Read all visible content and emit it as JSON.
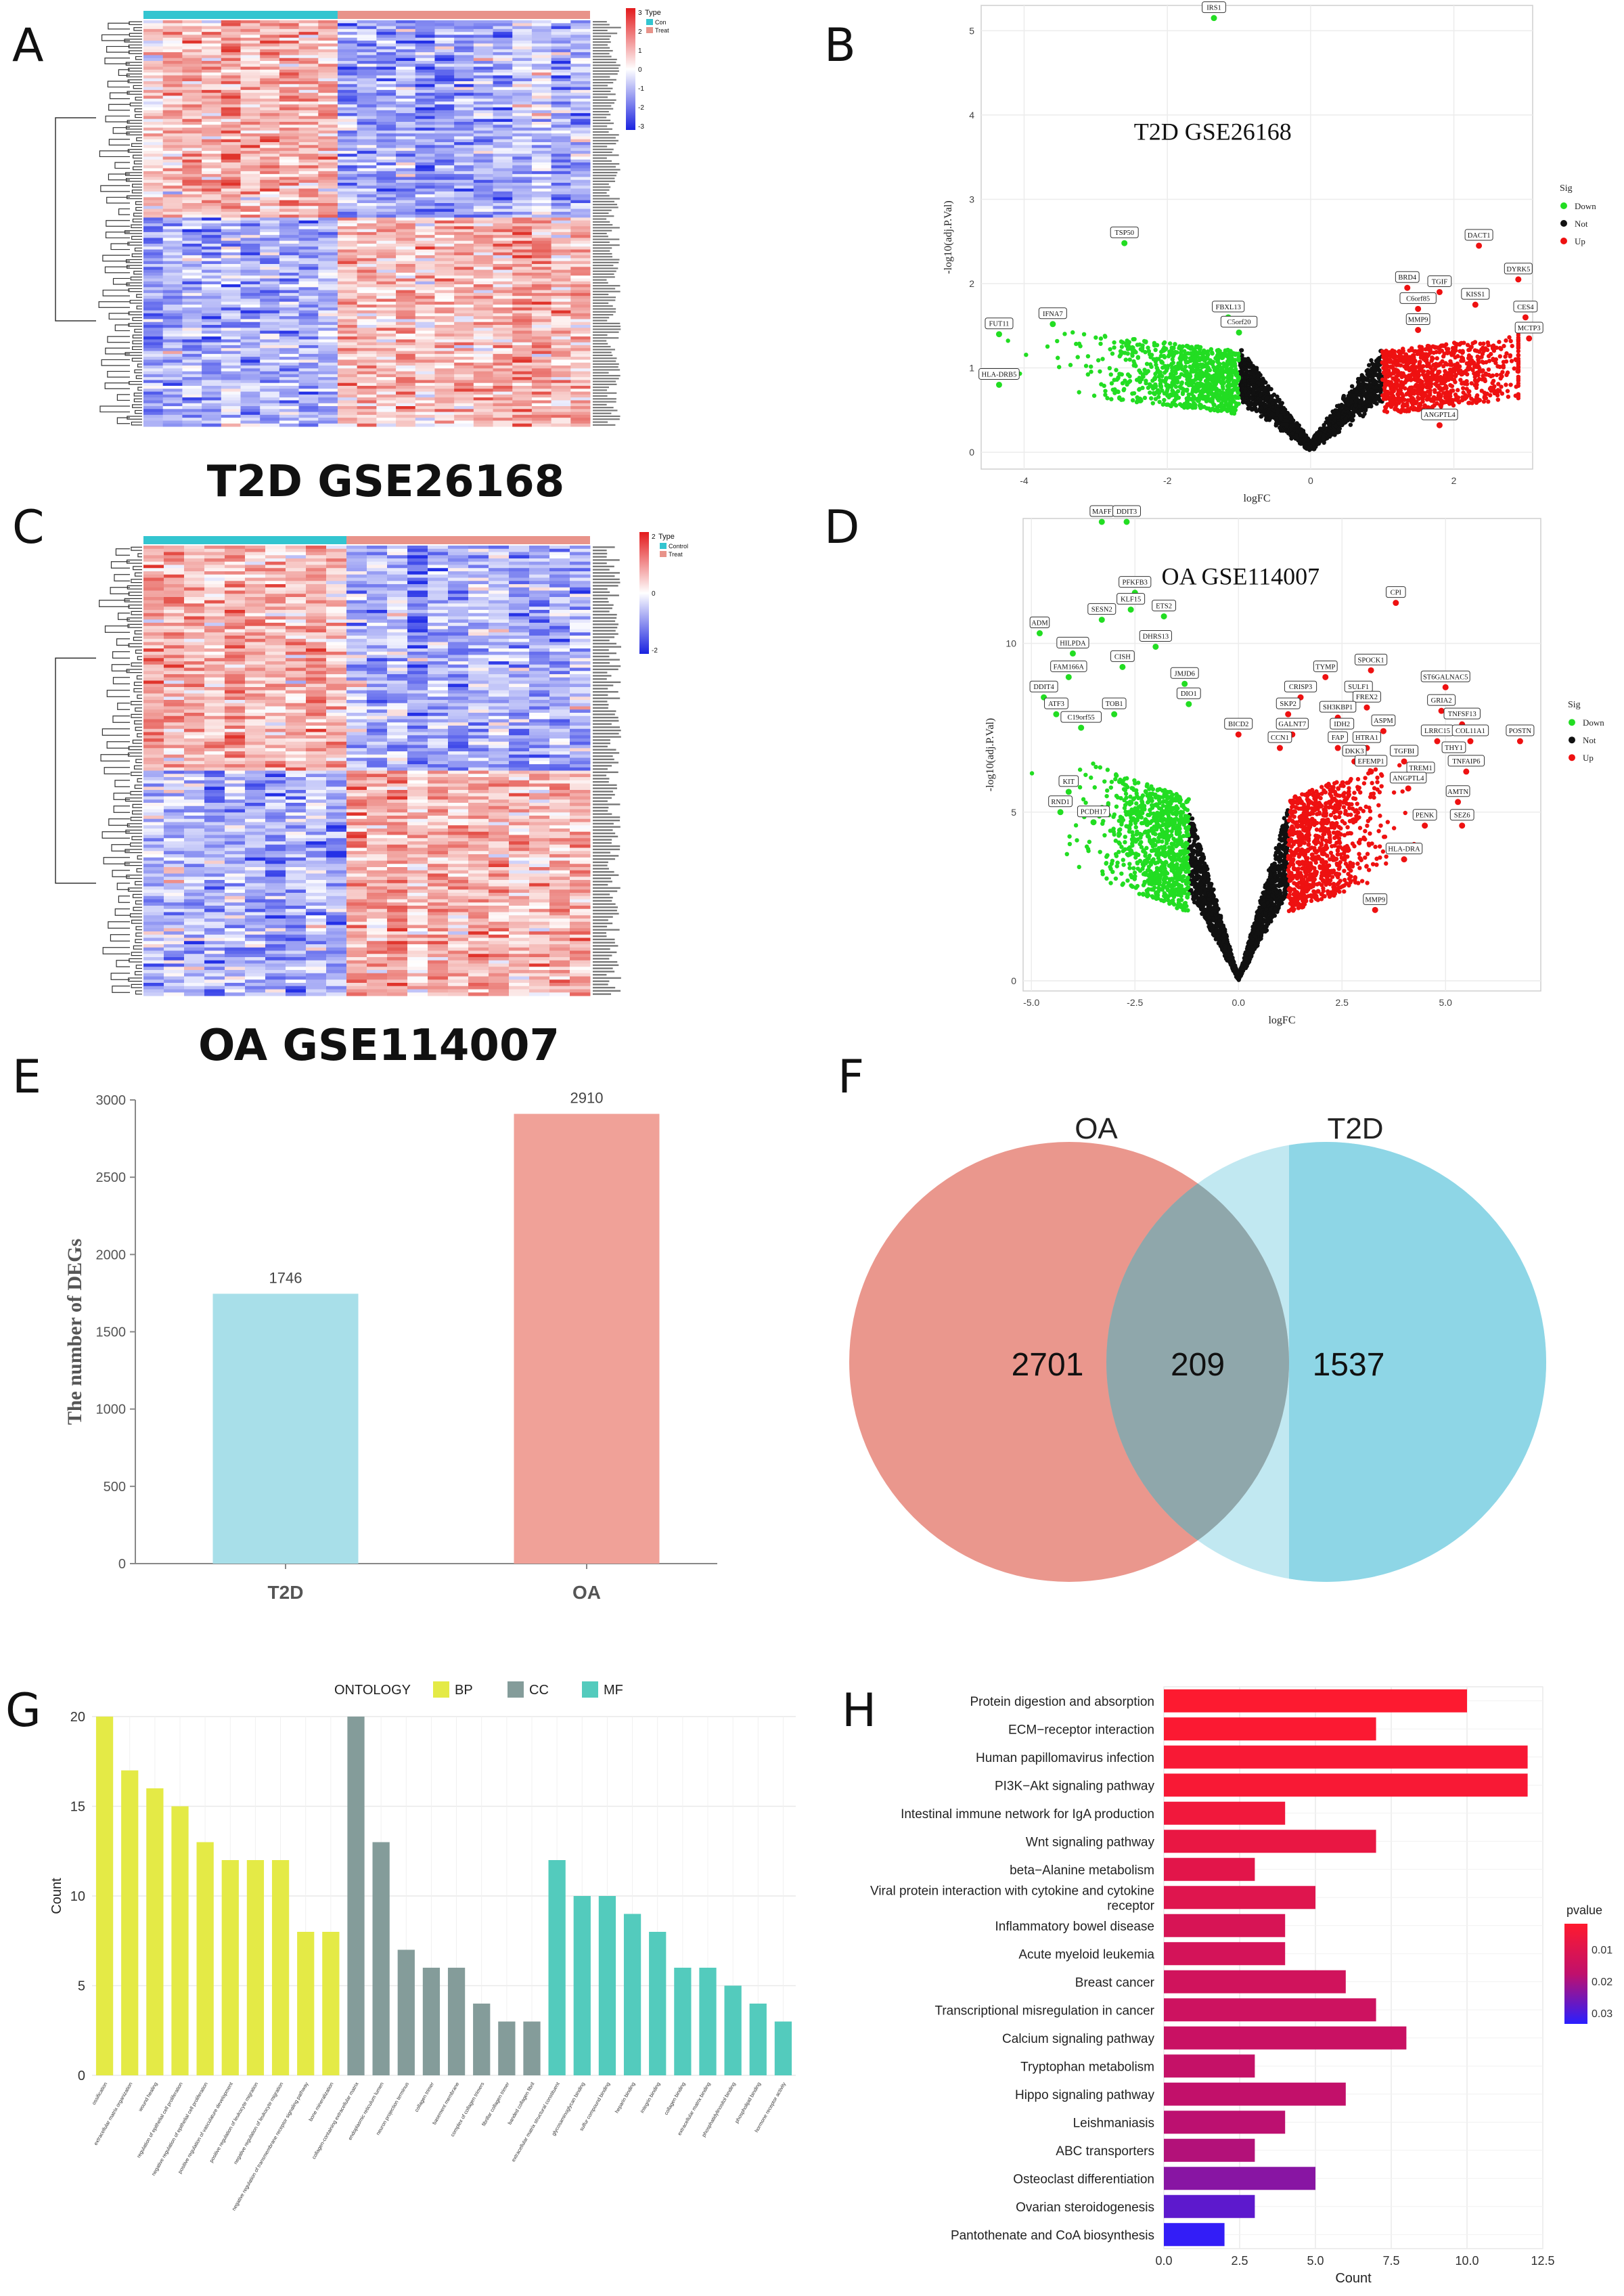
{
  "panels": {
    "A": "A",
    "B": "B",
    "C": "C",
    "D": "D",
    "E": "E",
    "F": "F",
    "G": "G",
    "H": "H"
  },
  "titles": {
    "t2d_heatmap": "T2D GSE26168",
    "oa_heatmap": "OA GSE114007",
    "t2d_volcano": "T2D GSE26168",
    "oa_volcano": "OA GSE114007"
  },
  "heatmapA": {
    "legend_title": "Type",
    "groups": [
      "Con",
      "Treat"
    ],
    "group_colors": [
      "#33c5d0",
      "#e8938a"
    ],
    "scale_ticks": [
      "3",
      "2",
      "1",
      "0",
      "-1",
      "-2",
      "-3"
    ],
    "low_color": "#1a22e0",
    "mid_color": "#ffffff",
    "high_color": "#e31a1c"
  },
  "heatmapC": {
    "legend_title": "Type",
    "groups": [
      "Control",
      "Treat"
    ],
    "group_colors": [
      "#33c5d0",
      "#e8938a"
    ],
    "scale_ticks": [
      "2",
      "0",
      "-2"
    ]
  },
  "chart_data": [
    {
      "id": "B",
      "type": "scatter",
      "title": "T2D GSE26168",
      "xlabel": "logFC",
      "ylabel": "-log10(adj.P.Val)",
      "xlim": [
        -4.6,
        3.1
      ],
      "ylim": [
        -0.2,
        5.3
      ],
      "xticks": [
        -4,
        -2,
        0,
        2
      ],
      "yticks": [
        0,
        1,
        2,
        3,
        4,
        5
      ],
      "legend": {
        "title": "Sig",
        "entries": [
          "Down",
          "Not",
          "Up"
        ],
        "colors": [
          "#22dd22",
          "#111111",
          "#ee1111"
        ]
      },
      "labels": [
        {
          "text": "IRS1",
          "x": -1.35,
          "y": 5.15,
          "sig": "Down"
        },
        {
          "text": "TSP50",
          "x": -2.6,
          "y": 2.48,
          "sig": "Down"
        },
        {
          "text": "IFNA7",
          "x": -3.6,
          "y": 1.52,
          "sig": "Down"
        },
        {
          "text": "FUT11",
          "x": -4.35,
          "y": 1.4,
          "sig": "Down"
        },
        {
          "text": "HLA-DRB5",
          "x": -4.35,
          "y": 0.8,
          "sig": "Down"
        },
        {
          "text": "FBXL13",
          "x": -1.15,
          "y": 1.6,
          "sig": "Down"
        },
        {
          "text": "C5orf20",
          "x": -1.0,
          "y": 1.42,
          "sig": "Down"
        },
        {
          "text": "BRD4",
          "x": 1.35,
          "y": 1.95,
          "sig": "Up"
        },
        {
          "text": "TGIF",
          "x": 1.8,
          "y": 1.9,
          "sig": "Up"
        },
        {
          "text": "C6orf85",
          "x": 1.5,
          "y": 1.7,
          "sig": "Up"
        },
        {
          "text": "DACT1",
          "x": 2.35,
          "y": 2.45,
          "sig": "Up"
        },
        {
          "text": "DYRK5",
          "x": 2.9,
          "y": 2.05,
          "sig": "Up"
        },
        {
          "text": "KISS1",
          "x": 2.3,
          "y": 1.75,
          "sig": "Up"
        },
        {
          "text": "MMP9",
          "x": 1.5,
          "y": 1.45,
          "sig": "Up"
        },
        {
          "text": "CES4",
          "x": 3.0,
          "y": 1.6,
          "sig": "Up"
        },
        {
          "text": "MCTP3",
          "x": 3.05,
          "y": 1.35,
          "sig": "Up"
        },
        {
          "text": "ANGPTL4",
          "x": 1.8,
          "y": 0.32,
          "sig": "Up"
        }
      ]
    },
    {
      "id": "D",
      "type": "scatter",
      "title": "OA GSE114007",
      "xlabel": "logFC",
      "ylabel": "-log10(adj.P.Val)",
      "xlim": [
        -5.2,
        7.3
      ],
      "ylim": [
        -0.3,
        13.7
      ],
      "xticks": [
        -5.0,
        -2.5,
        0.0,
        2.5,
        5.0
      ],
      "xticklabels": [
        "-5.0",
        "-2.5",
        "0.0",
        "2.5",
        "5.0"
      ],
      "yticks": [
        0,
        5,
        10
      ],
      "legend": {
        "title": "Sig",
        "entries": [
          "Down",
          "Not",
          "Up"
        ],
        "colors": [
          "#22dd22",
          "#111111",
          "#ee1111"
        ]
      },
      "labels": [
        {
          "text": "MAFF",
          "x": -3.3,
          "y": 13.6
        },
        {
          "text": "DDIT3",
          "x": -2.7,
          "y": 13.6
        },
        {
          "text": "PFKFB3",
          "x": -2.5,
          "y": 11.5
        },
        {
          "text": "KLF15",
          "x": -2.6,
          "y": 11.0
        },
        {
          "text": "SESN2",
          "x": -3.3,
          "y": 10.7
        },
        {
          "text": "ETS2",
          "x": -1.8,
          "y": 10.8
        },
        {
          "text": "ADM",
          "x": -4.8,
          "y": 10.3
        },
        {
          "text": "HILPDA",
          "x": -4.0,
          "y": 9.7
        },
        {
          "text": "DHRS13",
          "x": -2.0,
          "y": 9.9
        },
        {
          "text": "CISH",
          "x": -2.8,
          "y": 9.3
        },
        {
          "text": "FAM166A",
          "x": -4.1,
          "y": 9.0
        },
        {
          "text": "DDIT4",
          "x": -4.7,
          "y": 8.4
        },
        {
          "text": "JMJD6",
          "x": -1.3,
          "y": 8.8
        },
        {
          "text": "ATF3",
          "x": -4.4,
          "y": 7.9
        },
        {
          "text": "TOB1",
          "x": -3.0,
          "y": 7.9
        },
        {
          "text": "DIO1",
          "x": -1.2,
          "y": 8.2
        },
        {
          "text": "C19orf55",
          "x": -3.8,
          "y": 7.5
        },
        {
          "text": "KIT",
          "x": -4.1,
          "y": 5.6
        },
        {
          "text": "RND1",
          "x": -4.3,
          "y": 5.0
        },
        {
          "text": "PCDH17",
          "x": -3.5,
          "y": 4.7
        },
        {
          "text": "CPI",
          "x": 3.8,
          "y": 11.2
        },
        {
          "text": "SPOCK1",
          "x": 3.2,
          "y": 9.2
        },
        {
          "text": "TYMP",
          "x": 2.1,
          "y": 9.0
        },
        {
          "text": "ST6GALNAC5",
          "x": 5.0,
          "y": 8.7
        },
        {
          "text": "CRISP3",
          "x": 1.5,
          "y": 8.4
        },
        {
          "text": "SULF1",
          "x": 2.9,
          "y": 8.4
        },
        {
          "text": "FREX2",
          "x": 3.1,
          "y": 8.1
        },
        {
          "text": "GRIA2",
          "x": 4.9,
          "y": 8.0
        },
        {
          "text": "SKP2",
          "x": 1.2,
          "y": 7.9
        },
        {
          "text": "SH3KBP1",
          "x": 2.4,
          "y": 7.8
        },
        {
          "text": "TNFSF13",
          "x": 5.4,
          "y": 7.6
        },
        {
          "text": "ASPM",
          "x": 3.5,
          "y": 7.4
        },
        {
          "text": "BICD2",
          "x": 0.0,
          "y": 7.3
        },
        {
          "text": "GALNT7",
          "x": 1.3,
          "y": 7.3
        },
        {
          "text": "IDH2",
          "x": 2.5,
          "y": 7.3
        },
        {
          "text": "LRRC15",
          "x": 4.8,
          "y": 7.1
        },
        {
          "text": "COL11A1",
          "x": 5.6,
          "y": 7.1
        },
        {
          "text": "POSTN",
          "x": 6.8,
          "y": 7.1
        },
        {
          "text": "CCN1",
          "x": 1.0,
          "y": 6.9
        },
        {
          "text": "FAP",
          "x": 2.4,
          "y": 6.9
        },
        {
          "text": "HTRA1",
          "x": 3.1,
          "y": 6.9
        },
        {
          "text": "THY1",
          "x": 5.2,
          "y": 6.6
        },
        {
          "text": "TGFBI",
          "x": 4.0,
          "y": 6.5
        },
        {
          "text": "DKK3",
          "x": 2.8,
          "y": 6.5
        },
        {
          "text": "TNFAIP6",
          "x": 5.5,
          "y": 6.2
        },
        {
          "text": "EFEMP1",
          "x": 3.2,
          "y": 6.2
        },
        {
          "text": "TREM1",
          "x": 4.4,
          "y": 6.0
        },
        {
          "text": "ANGPTL4",
          "x": 4.1,
          "y": 5.7
        },
        {
          "text": "AMTN",
          "x": 5.3,
          "y": 5.3
        },
        {
          "text": "SEZ6",
          "x": 5.4,
          "y": 4.6
        },
        {
          "text": "PENK",
          "x": 4.5,
          "y": 4.6
        },
        {
          "text": "HLA-DRA",
          "x": 4.0,
          "y": 3.6
        },
        {
          "text": "MMP9",
          "x": 3.3,
          "y": 2.1
        }
      ]
    },
    {
      "id": "E",
      "type": "bar",
      "categories": [
        "T2D",
        "OA"
      ],
      "values": [
        1746,
        2910
      ],
      "data_labels": [
        "1746",
        "2910"
      ],
      "colors": [
        "#a8dfe9",
        "#f0a198"
      ],
      "xlabel": "",
      "ylabel": "The number of DEGs",
      "ylim": [
        0,
        3000
      ],
      "yticks": [
        0,
        500,
        1000,
        1500,
        2000,
        2500,
        3000
      ]
    },
    {
      "id": "F",
      "type": "venn",
      "sets": [
        "OA",
        "T2D"
      ],
      "values": {
        "OA_only": "2701",
        "both": "209",
        "T2D_only": "1537"
      },
      "colors": [
        "#ea978d",
        "#8ed6e6"
      ]
    },
    {
      "id": "G",
      "type": "bar",
      "legend_title": "ONTOLOGY",
      "legend": [
        "BP",
        "CC",
        "MF"
      ],
      "legend_colors": [
        "#e4ea46",
        "#849c9a",
        "#53cbbd"
      ],
      "ylabel": "Count",
      "ylim": [
        0,
        20
      ],
      "yticks": [
        0,
        5,
        10,
        15,
        20
      ],
      "categories": [
        "ossification",
        "extracellular matrix organization",
        "wound healing",
        "regulation of epithelial cell proliferation",
        "negative regulation of epithelial cell proliferation",
        "positive regulation of vasculature development",
        "positive regulation of leukocyte migration",
        "negative regulation of leukocyte migration",
        "negative regulation of transmembrane receptor signaling pathway",
        "bone mineralization",
        "collagen-containing extracellular matrix",
        "endoplasmic reticulum lumen",
        "neuron projection terminus",
        "collagen trimer",
        "basement membrane",
        "complex of collagen trimers",
        "fibrillar collagen trimer",
        "banded collagen fibril",
        "extracellular matrix structural constituent",
        "glycosaminoglycan binding",
        "sulfur compound binding",
        "heparin binding",
        "integrin binding",
        "collagen binding",
        "extracellular matrix binding",
        "phosphatidylinositol binding",
        "phospholipid binding",
        "hormone receptor activity"
      ],
      "values": [
        20,
        17,
        16,
        15,
        13,
        12,
        12,
        12,
        8,
        8,
        20,
        13,
        7,
        6,
        6,
        4,
        3,
        3,
        12,
        10,
        10,
        9,
        8,
        6,
        6,
        5,
        4,
        3
      ],
      "groups": [
        "BP",
        "BP",
        "BP",
        "BP",
        "BP",
        "BP",
        "BP",
        "BP",
        "BP",
        "BP",
        "CC",
        "CC",
        "CC",
        "CC",
        "CC",
        "CC",
        "CC",
        "CC",
        "MF",
        "MF",
        "MF",
        "MF",
        "MF",
        "MF",
        "MF",
        "MF",
        "MF",
        "MF"
      ]
    },
    {
      "id": "H",
      "type": "bar",
      "orientation": "horizontal",
      "xlabel": "Count",
      "xlim": [
        0,
        12.5
      ],
      "xticks": [
        0,
        2.5,
        5,
        7.5,
        10,
        12.5
      ],
      "xticklabels": [
        "0.0",
        "2.5",
        "5.0",
        "7.5",
        "10.0",
        "12.5"
      ],
      "legend_title": "pvalue",
      "legend_ticks": [
        "0.01",
        "0.02",
        "0.03"
      ],
      "categories": [
        "Protein digestion and absorption",
        "ECM−receptor interaction",
        "Human papillomavirus infection",
        "PI3K−Akt signaling pathway",
        "Intestinal immune network for IgA production",
        "Wnt signaling pathway",
        "beta−Alanine metabolism",
        "Viral protein interaction with cytokine and cytokine receptor",
        "Inflammatory bowel disease",
        "Acute myeloid leukemia",
        "Breast cancer",
        "Transcriptional misregulation in cancer",
        "Calcium signaling pathway",
        "Tryptophan metabolism",
        "Hippo signaling pathway",
        "Leishmaniasis",
        "ABC transporters",
        "Osteoclast differentiation",
        "Ovarian steroidogenesis",
        "Pantothenate and CoA biosynthesis"
      ],
      "label_lines": [
        [
          "Protein digestion and absorption"
        ],
        [
          "ECM−receptor interaction"
        ],
        [
          "Human papillomavirus infection"
        ],
        [
          "PI3K−Akt signaling pathway"
        ],
        [
          "Intestinal immune network for IgA production"
        ],
        [
          "Wnt signaling pathway"
        ],
        [
          "beta−Alanine metabolism"
        ],
        [
          "Viral protein interaction with cytokine and cytokine",
          "receptor"
        ],
        [
          "Inflammatory bowel disease"
        ],
        [
          "Acute myeloid leukemia"
        ],
        [
          "Breast cancer"
        ],
        [
          "Transcriptional misregulation in cancer"
        ],
        [
          "Calcium signaling pathway"
        ],
        [
          "Tryptophan metabolism"
        ],
        [
          "Hippo signaling pathway"
        ],
        [
          "Leishmaniasis"
        ],
        [
          "ABC transporters"
        ],
        [
          "Osteoclast differentiation"
        ],
        [
          "Ovarian steroidogenesis"
        ],
        [
          "Pantothenate and CoA biosynthesis"
        ]
      ],
      "values": [
        10,
        7,
        12,
        12,
        4,
        7,
        3,
        5,
        4,
        4,
        6,
        7,
        8,
        3,
        6,
        4,
        3,
        5,
        3,
        2
      ],
      "pvalues": [
        0.0005,
        0.001,
        0.002,
        0.002,
        0.004,
        0.006,
        0.008,
        0.009,
        0.011,
        0.012,
        0.013,
        0.014,
        0.015,
        0.016,
        0.017,
        0.018,
        0.019,
        0.024,
        0.029,
        0.034
      ]
    }
  ]
}
